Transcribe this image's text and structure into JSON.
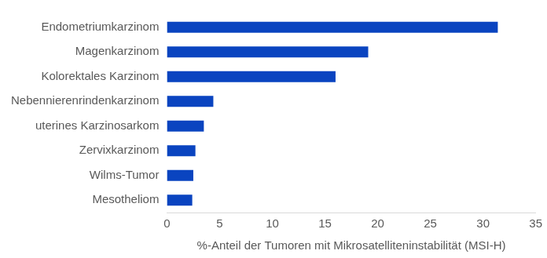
{
  "chart_data": {
    "type": "bar",
    "orientation": "horizontal",
    "x_label": "%-Anteil der Tumoren mit Mikrosatelliteninstabilität (MSI-H)",
    "categories": [
      "Endometriumkarzinom",
      "Magenkarzinom",
      "Kolorektales Karzinom",
      "Nebennierenrindenkarzinom",
      "uterines Karzinosarkom",
      "Zervixkarzinom",
      "Wilms-Tumor",
      "Mesotheliom"
    ],
    "values": [
      31.4,
      19.1,
      16.0,
      4.4,
      3.5,
      2.7,
      2.5,
      2.4
    ],
    "color": "#0a44c0",
    "xlim": [
      0,
      35
    ],
    "xticks": [
      0,
      5,
      10,
      15,
      20,
      25,
      30,
      35
    ],
    "grid": false
  }
}
